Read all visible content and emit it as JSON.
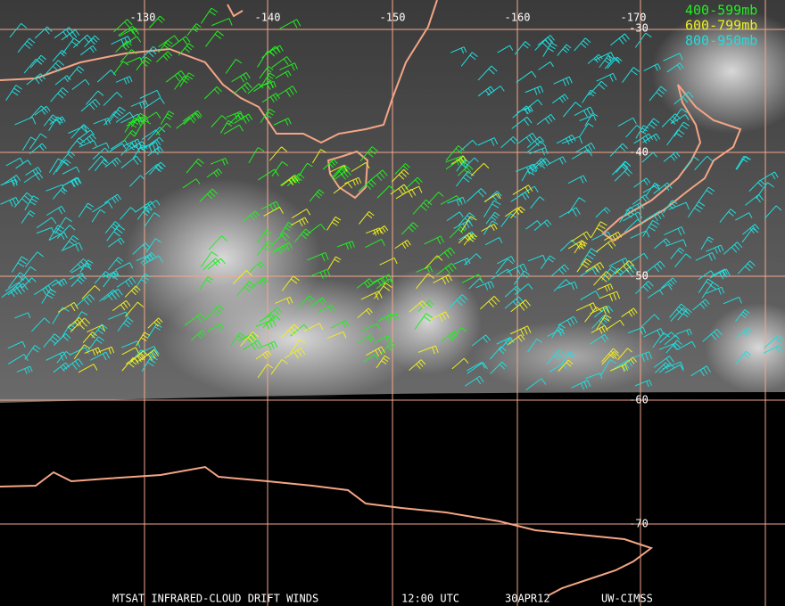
{
  "map": {
    "lon_labels": [
      "-130",
      "-140",
      "-150",
      "-160",
      "-170"
    ],
    "lat_labels": [
      "-30",
      "-40",
      "-50",
      "-60",
      "-70"
    ],
    "legend": [
      {
        "label": "400-599mb",
        "color": "#22ee22"
      },
      {
        "label": "600-799mb",
        "color": "#eeee22"
      },
      {
        "label": "800-950mb",
        "color": "#22dddd"
      }
    ],
    "footer": {
      "title": "MTSAT INFRARED-CLOUD DRIFT WINDS",
      "time": "12:00 UTC",
      "date": "30APR12",
      "source": "UW-CIMSS"
    }
  }
}
